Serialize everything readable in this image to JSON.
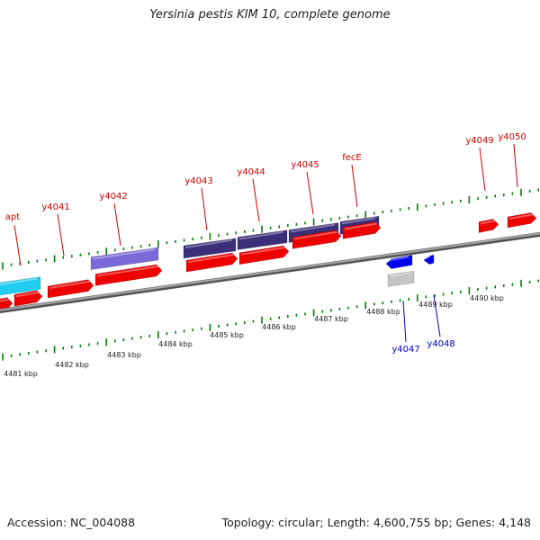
{
  "title": "Yersinia pestis KIM 10, complete genome",
  "footer": {
    "accession": "Accession: NC_004088",
    "summary": "Topology: circular; Length: 4,600,755 bp; Genes: 4,148"
  },
  "colors": {
    "cds_plus": "#ee0000",
    "cds_minus": "#0000ee",
    "cog_dark": "#3b2f7a",
    "cog_light": "#7a6ad8",
    "cog_cyan": "#22ccf0",
    "cog_gray": "#c4c4c4",
    "backbone": "#7a7a7a",
    "tick": "#008000",
    "label_plus": "#cc0000",
    "label_minus": "#0000cc"
  },
  "scale_labels": [
    "4481 kbp",
    "4482 kbp",
    "4483 kbp",
    "4484 kbp",
    "4485 kbp",
    "4486 kbp",
    "4487 kbp",
    "4488 kbp",
    "4489 kbp",
    "4490 kbp"
  ],
  "genes_plus": [
    "apt",
    "y4041",
    "y4042",
    "y4043",
    "y4044",
    "y4045",
    "fecE",
    "y4049",
    "y4050"
  ],
  "genes_minus": [
    "y4047",
    "y4048"
  ]
}
